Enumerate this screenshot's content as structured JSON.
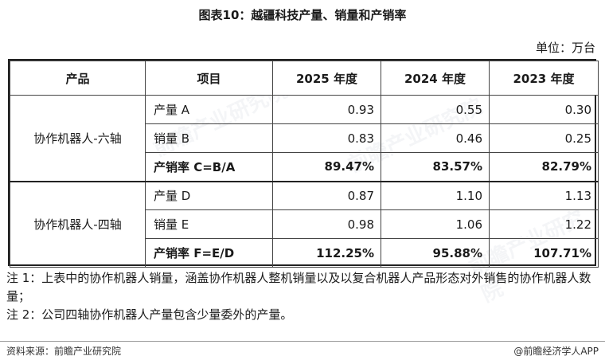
{
  "title": "图表10：越疆科技产量、销量和产销率",
  "unit": "单位：万台",
  "table": {
    "headers": [
      "产品",
      "项目",
      "2025 年度",
      "2024 年度",
      "2023 年度"
    ],
    "groups": [
      {
        "name": "协作机器人-六轴",
        "rows": [
          {
            "item": "产量 A",
            "values": [
              "0.93",
              "0.55",
              "0.30"
            ],
            "bold": false
          },
          {
            "item": "销量 B",
            "values": [
              "0.83",
              "0.46",
              "0.25"
            ],
            "bold": false
          },
          {
            "item": "产销率 C=B/A",
            "values": [
              "89.47%",
              "83.57%",
              "82.79%"
            ],
            "bold": true
          }
        ]
      },
      {
        "name": "协作机器人-四轴",
        "rows": [
          {
            "item": "产量 D",
            "values": [
              "0.87",
              "1.10",
              "1.13"
            ],
            "bold": false
          },
          {
            "item": "销量 E",
            "values": [
              "0.98",
              "1.06",
              "1.22"
            ],
            "bold": false
          },
          {
            "item": "产销率 F=E/D",
            "values": [
              "112.25%",
              "95.88%",
              "107.71%"
            ],
            "bold": true
          }
        ]
      }
    ]
  },
  "notes": [
    "注 1：上表中的协作机器人销量，涵盖协作机器人整机销量以及以复合机器人产品形态对外销售的协作机器人数量；",
    "注 2：公司四轴协作机器人产量包含少量委外的产量。"
  ],
  "footer": {
    "source": "资料来源：前瞻产业研究院",
    "brand": "@前瞻经济学人APP"
  },
  "watermark": "前瞻产业研究院"
}
